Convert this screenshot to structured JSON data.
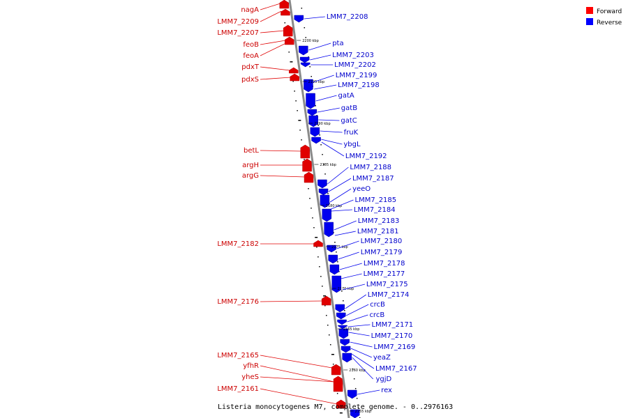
{
  "caption": "Listeria monocytogenes M7, complete genome. - 0..2976163",
  "legend": [
    {
      "label": "Forward",
      "color": "#ff0000"
    },
    {
      "label": "Reverse",
      "color": "#0000ff"
    }
  ],
  "colors": {
    "forward": "#e00000",
    "reverse": "#0000ee",
    "axis": "#888888"
  },
  "ticks": [
    "2200 kbp",
    "2195 kbp",
    "2190 kbp",
    "2185 kbp",
    "2180 kbp",
    "2175 kbp",
    "2170 kbp",
    "2165 kbp",
    "2160 kbp",
    "2155 kbp"
  ],
  "forward_genes": [
    "nagA",
    "LMM7_2209",
    "LMM7_2207",
    "feoB",
    "feoA",
    "pdxT",
    "pdxS",
    "betL",
    "argH",
    "argG",
    "LMM7_2182",
    "LMM7_2176",
    "LMM7_2165",
    "yfhR",
    "yheS",
    "LMM7_2161"
  ],
  "reverse_genes": [
    "LMM7_2208",
    "pta",
    "LMM7_2203",
    "LMM7_2202",
    "LMM7_2199",
    "LMM7_2198",
    "gatA",
    "gatB",
    "gatC",
    "fruK",
    "ybgL",
    "LMM7_2192",
    "LMM7_2188",
    "LMM7_2187",
    "yeeO",
    "LMM7_2185",
    "LMM7_2184",
    "LMM7_2183",
    "LMM7_2181",
    "LMM7_2180",
    "LMM7_2179",
    "LMM7_2178",
    "LMM7_2177",
    "LMM7_2175",
    "LMM7_2174",
    "crcB",
    "crcB",
    "LMM7_2171",
    "LMM7_2170",
    "LMM7_2169",
    "yeaZ",
    "LMM7_2167",
    "ygjD",
    "rex"
  ]
}
